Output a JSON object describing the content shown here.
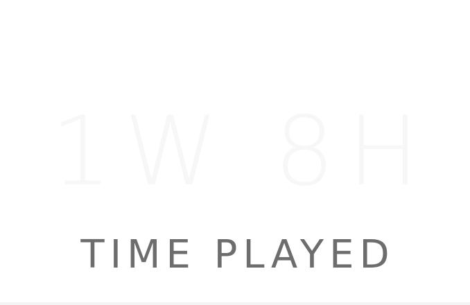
{
  "stat": {
    "value": "1W 8H",
    "label": "TIME PLAYED"
  },
  "colors": {
    "background": "#ffffff",
    "value_text": "#f7f7f7",
    "label_text": "#6d6d6d",
    "bottom_strip": "#f4f4f4"
  }
}
